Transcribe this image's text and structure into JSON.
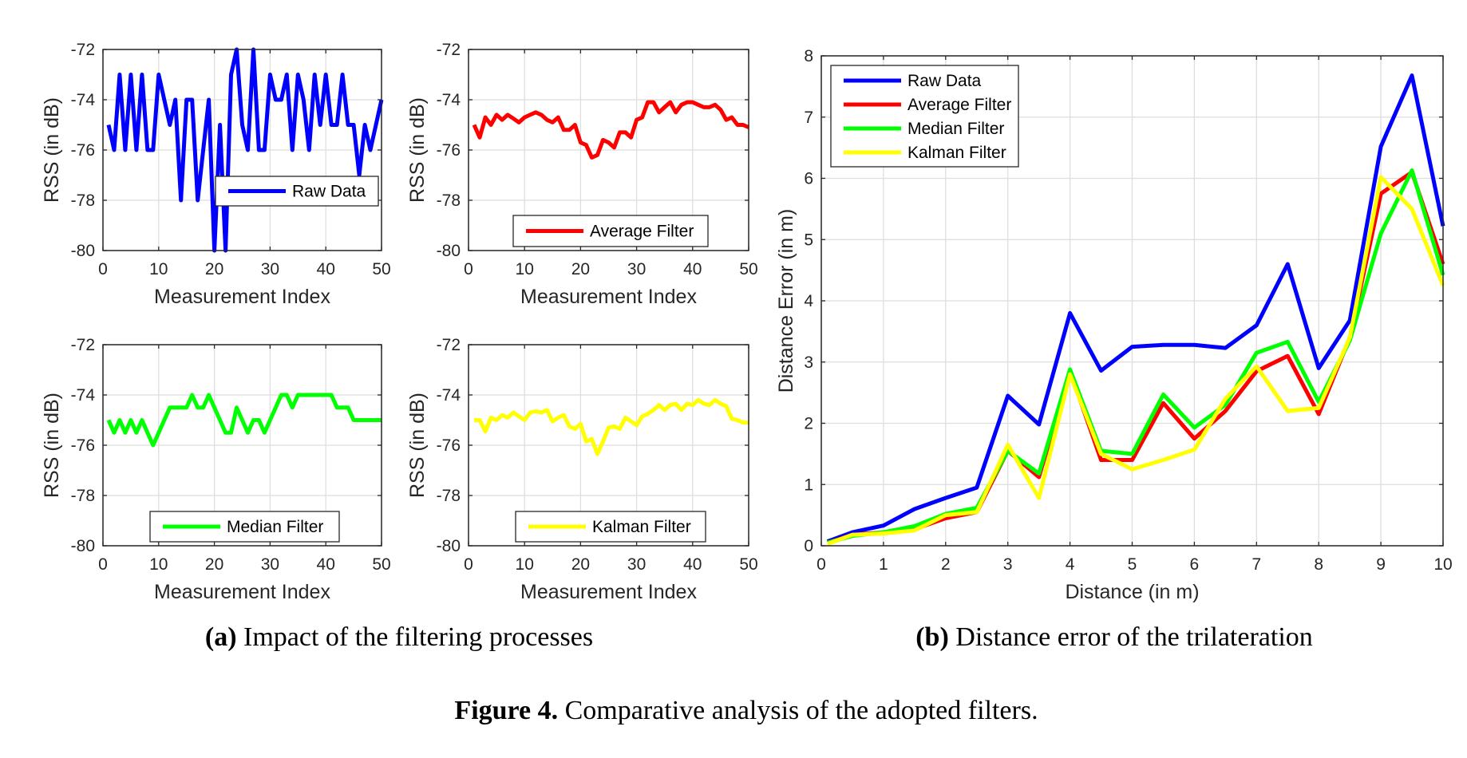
{
  "chart_data": [
    {
      "type": "line",
      "panel": "a",
      "xlabel": "Measurement Index",
      "ylabel": "RSS (in dB)",
      "xlim": [
        0,
        50
      ],
      "ylim": [
        -80,
        -72
      ],
      "xticks": [
        "0",
        "10",
        "20",
        "30",
        "40",
        "50"
      ],
      "yticks": [
        "-72",
        "-74",
        "-76",
        "-78",
        "-80"
      ],
      "grid": true,
      "legend_position": "lower-right",
      "series": [
        {
          "name": "Raw Data",
          "color": "#0000ff",
          "x": [
            1,
            2,
            3,
            4,
            5,
            6,
            7,
            8,
            9,
            10,
            11,
            12,
            13,
            14,
            15,
            16,
            17,
            18,
            19,
            20,
            21,
            22,
            23,
            24,
            25,
            26,
            27,
            28,
            29,
            30,
            31,
            32,
            33,
            34,
            35,
            36,
            37,
            38,
            39,
            40,
            41,
            42,
            43,
            44,
            45,
            46,
            47,
            48,
            49,
            50
          ],
          "y": [
            -75,
            -76,
            -73,
            -76,
            -73,
            -76,
            -73,
            -76,
            -76,
            -73,
            -74,
            -75,
            -74,
            -78,
            -74,
            -74,
            -78,
            -76,
            -74,
            -80,
            -75,
            -80,
            -73,
            -72,
            -75,
            -76,
            -72,
            -76,
            -76,
            -73,
            -74,
            -74,
            -73,
            -76,
            -73,
            -74,
            -76,
            -73,
            -75,
            -73,
            -75,
            -75,
            -73,
            -75,
            -75,
            -77,
            -75,
            -76,
            -75,
            -74
          ]
        }
      ]
    },
    {
      "type": "line",
      "panel": "a",
      "xlabel": "Measurement Index",
      "ylabel": "RSS (in dB)",
      "xlim": [
        0,
        50
      ],
      "ylim": [
        -80,
        -72
      ],
      "xticks": [
        "0",
        "10",
        "20",
        "30",
        "40",
        "50"
      ],
      "yticks": [
        "-72",
        "-74",
        "-76",
        "-78",
        "-80"
      ],
      "grid": true,
      "legend_position": "bottom",
      "series": [
        {
          "name": "Average Filter",
          "color": "#ff0000",
          "x": [
            1,
            2,
            3,
            4,
            5,
            6,
            7,
            8,
            9,
            10,
            11,
            12,
            13,
            14,
            15,
            16,
            17,
            18,
            19,
            20,
            21,
            22,
            23,
            24,
            25,
            26,
            27,
            28,
            29,
            30,
            31,
            32,
            33,
            34,
            35,
            36,
            37,
            38,
            39,
            40,
            41,
            42,
            43,
            44,
            45,
            46,
            47,
            48,
            49,
            50
          ],
          "y": [
            -75.0,
            -75.5,
            -74.7,
            -75.0,
            -74.6,
            -74.8,
            -74.6,
            -74.75,
            -74.9,
            -74.7,
            -74.6,
            -74.5,
            -74.6,
            -74.8,
            -74.9,
            -74.7,
            -75.2,
            -75.2,
            -75.0,
            -75.7,
            -75.8,
            -76.3,
            -76.2,
            -75.6,
            -75.7,
            -75.9,
            -75.3,
            -75.3,
            -75.5,
            -74.8,
            -74.7,
            -74.1,
            -74.1,
            -74.5,
            -74.3,
            -74.1,
            -74.5,
            -74.2,
            -74.1,
            -74.1,
            -74.2,
            -74.3,
            -74.3,
            -74.2,
            -74.4,
            -74.8,
            -74.7,
            -75.0,
            -75.0,
            -75.1
          ]
        }
      ]
    },
    {
      "type": "line",
      "panel": "a",
      "xlabel": "Measurement Index",
      "ylabel": "RSS (in dB)",
      "xlim": [
        0,
        50
      ],
      "ylim": [
        -80,
        -72
      ],
      "xticks": [
        "0",
        "10",
        "20",
        "30",
        "40",
        "50"
      ],
      "yticks": [
        "-72",
        "-74",
        "-76",
        "-78",
        "-80"
      ],
      "grid": true,
      "legend_position": "bottom",
      "series": [
        {
          "name": "Median Filter",
          "color": "#00ff00",
          "x": [
            1,
            2,
            3,
            4,
            5,
            6,
            7,
            8,
            9,
            10,
            11,
            12,
            13,
            14,
            15,
            16,
            17,
            18,
            19,
            20,
            21,
            22,
            23,
            24,
            25,
            26,
            27,
            28,
            29,
            30,
            31,
            32,
            33,
            34,
            35,
            36,
            37,
            38,
            39,
            40,
            41,
            42,
            43,
            44,
            45,
            46,
            47,
            48,
            49,
            50
          ],
          "y": [
            -75,
            -75.5,
            -75,
            -75.5,
            -75,
            -75.5,
            -75,
            -75.5,
            -76,
            -75.5,
            -75,
            -74.5,
            -74.5,
            -74.5,
            -74.5,
            -74,
            -74.5,
            -74.5,
            -74,
            -74.5,
            -75,
            -75.5,
            -75.5,
            -74.5,
            -75,
            -75.5,
            -75,
            -75,
            -75.5,
            -75,
            -74.5,
            -74,
            -74,
            -74.5,
            -74,
            -74,
            -74,
            -74,
            -74,
            -74,
            -74,
            -74.5,
            -74.5,
            -74.5,
            -75,
            -75,
            -75,
            -75,
            -75,
            -75
          ]
        }
      ]
    },
    {
      "type": "line",
      "panel": "a",
      "xlabel": "Measurement Index",
      "ylabel": "RSS (in dB)",
      "xlim": [
        0,
        50
      ],
      "ylim": [
        -80,
        -72
      ],
      "xticks": [
        "0",
        "10",
        "20",
        "30",
        "40",
        "50"
      ],
      "yticks": [
        "-72",
        "-74",
        "-76",
        "-78",
        "-80"
      ],
      "grid": true,
      "legend_position": "bottom",
      "series": [
        {
          "name": "Kalman Filter",
          "color": "#ffff00",
          "x": [
            1,
            2,
            3,
            4,
            5,
            6,
            7,
            8,
            9,
            10,
            11,
            12,
            13,
            14,
            15,
            16,
            17,
            18,
            19,
            20,
            21,
            22,
            23,
            24,
            25,
            26,
            27,
            28,
            29,
            30,
            31,
            32,
            33,
            34,
            35,
            36,
            37,
            38,
            39,
            40,
            41,
            42,
            43,
            44,
            45,
            46,
            47,
            48,
            49,
            50
          ],
          "y": [
            -75.0,
            -75.0,
            -75.45,
            -74.9,
            -75.0,
            -74.8,
            -74.9,
            -74.7,
            -74.85,
            -75.0,
            -74.7,
            -74.65,
            -74.7,
            -74.6,
            -75.05,
            -74.9,
            -74.8,
            -75.25,
            -75.35,
            -75.15,
            -75.85,
            -75.75,
            -76.35,
            -75.85,
            -75.3,
            -75.25,
            -75.35,
            -74.9,
            -75.05,
            -75.2,
            -74.85,
            -74.75,
            -74.6,
            -74.4,
            -74.6,
            -74.4,
            -74.35,
            -74.6,
            -74.35,
            -74.4,
            -74.2,
            -74.35,
            -74.4,
            -74.2,
            -74.35,
            -74.45,
            -74.95,
            -75.0,
            -75.1,
            -75.1
          ]
        }
      ]
    },
    {
      "type": "line",
      "panel": "b",
      "xlabel": "Distance (in m)",
      "ylabel": "Distance Error (in m)",
      "xlim": [
        0,
        10
      ],
      "ylim": [
        0,
        8
      ],
      "xticks": [
        "0",
        "1",
        "2",
        "3",
        "4",
        "5",
        "6",
        "7",
        "8",
        "9",
        "10"
      ],
      "yticks": [
        "8",
        "7",
        "6",
        "5",
        "4",
        "3",
        "2",
        "1",
        "0"
      ],
      "grid": true,
      "legend_position": "top-left",
      "x": [
        0.1,
        0.5,
        1,
        1.5,
        2,
        2.5,
        3,
        3.5,
        4,
        4.5,
        5,
        5.5,
        6,
        6.5,
        7,
        7.5,
        8,
        8.5,
        9,
        9.5,
        10
      ],
      "series": [
        {
          "name": "Raw Data",
          "color": "#0000ff",
          "y": [
            0.07,
            0.22,
            0.33,
            0.6,
            0.78,
            0.95,
            2.45,
            1.98,
            3.8,
            2.86,
            3.25,
            3.28,
            3.28,
            3.23,
            3.6,
            4.6,
            2.9,
            3.68,
            6.52,
            7.68,
            5.22
          ]
        },
        {
          "name": "Average Filter",
          "color": "#ff0000",
          "y": [
            0.05,
            0.18,
            0.22,
            0.27,
            0.45,
            0.55,
            1.55,
            1.12,
            2.85,
            1.4,
            1.4,
            2.33,
            1.75,
            2.2,
            2.85,
            3.1,
            2.15,
            3.4,
            5.75,
            6.1,
            4.6
          ]
        },
        {
          "name": "Median Filter",
          "color": "#00ff00",
          "y": [
            0.05,
            0.16,
            0.22,
            0.32,
            0.52,
            0.62,
            1.55,
            1.18,
            2.88,
            1.55,
            1.5,
            2.47,
            1.93,
            2.3,
            3.15,
            3.33,
            2.35,
            3.35,
            5.1,
            6.13,
            4.42
          ]
        },
        {
          "name": "Kalman Filter",
          "color": "#ffff00",
          "y": [
            0.03,
            0.18,
            0.2,
            0.25,
            0.5,
            0.55,
            1.65,
            0.78,
            2.8,
            1.5,
            1.25,
            1.4,
            1.57,
            2.4,
            2.93,
            2.2,
            2.25,
            3.4,
            6.02,
            5.5,
            4.25
          ]
        }
      ]
    }
  ],
  "captions": {
    "a_label": "(a)",
    "a_text": " Impact of the filtering processes",
    "b_label": "(b)",
    "b_text": " Distance error of the trilateration",
    "figure_label": "Figure 4.",
    "figure_text": " Comparative analysis of the adopted filters."
  }
}
